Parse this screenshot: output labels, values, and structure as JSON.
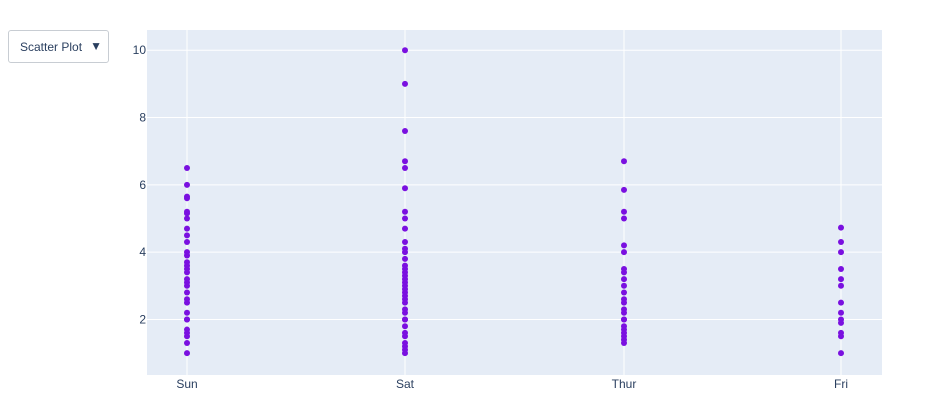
{
  "dropdown": {
    "selected": "Scatter Plot",
    "caret": "▼"
  },
  "colors": {
    "plot_bg": "#e5ecf6",
    "grid": "#ffffff",
    "marker": "#7a10e0"
  },
  "chart_data": {
    "type": "scatter",
    "title": "",
    "xlabel": "",
    "ylabel": "",
    "categories": [
      "Sun",
      "Sat",
      "Thur",
      "Fri"
    ],
    "ylim": [
      0.35,
      10.6
    ],
    "yticks": [
      2,
      4,
      6,
      8,
      10
    ],
    "grid": true,
    "legend": "none",
    "series": [
      {
        "points": [
          {
            "x": "Sun",
            "y": 1.0
          },
          {
            "x": "Sun",
            "y": 1.3
          },
          {
            "x": "Sun",
            "y": 1.5
          },
          {
            "x": "Sun",
            "y": 1.6
          },
          {
            "x": "Sun",
            "y": 1.7
          },
          {
            "x": "Sun",
            "y": 2.0
          },
          {
            "x": "Sun",
            "y": 2.0
          },
          {
            "x": "Sun",
            "y": 2.2
          },
          {
            "x": "Sun",
            "y": 2.5
          },
          {
            "x": "Sun",
            "y": 2.6
          },
          {
            "x": "Sun",
            "y": 2.8
          },
          {
            "x": "Sun",
            "y": 3.0
          },
          {
            "x": "Sun",
            "y": 3.1
          },
          {
            "x": "Sun",
            "y": 3.2
          },
          {
            "x": "Sun",
            "y": 3.4
          },
          {
            "x": "Sun",
            "y": 3.5
          },
          {
            "x": "Sun",
            "y": 3.6
          },
          {
            "x": "Sun",
            "y": 3.7
          },
          {
            "x": "Sun",
            "y": 3.9
          },
          {
            "x": "Sun",
            "y": 4.0
          },
          {
            "x": "Sun",
            "y": 4.3
          },
          {
            "x": "Sun",
            "y": 4.5
          },
          {
            "x": "Sun",
            "y": 4.7
          },
          {
            "x": "Sun",
            "y": 5.0
          },
          {
            "x": "Sun",
            "y": 5.15
          },
          {
            "x": "Sun",
            "y": 5.2
          },
          {
            "x": "Sun",
            "y": 5.6
          },
          {
            "x": "Sun",
            "y": 5.65
          },
          {
            "x": "Sun",
            "y": 6.0
          },
          {
            "x": "Sun",
            "y": 6.5
          },
          {
            "x": "Sat",
            "y": 1.0
          },
          {
            "x": "Sat",
            "y": 1.1
          },
          {
            "x": "Sat",
            "y": 1.2
          },
          {
            "x": "Sat",
            "y": 1.3
          },
          {
            "x": "Sat",
            "y": 1.5
          },
          {
            "x": "Sat",
            "y": 1.6
          },
          {
            "x": "Sat",
            "y": 1.8
          },
          {
            "x": "Sat",
            "y": 2.0
          },
          {
            "x": "Sat",
            "y": 2.0
          },
          {
            "x": "Sat",
            "y": 2.2
          },
          {
            "x": "Sat",
            "y": 2.3
          },
          {
            "x": "Sat",
            "y": 2.5
          },
          {
            "x": "Sat",
            "y": 2.6
          },
          {
            "x": "Sat",
            "y": 2.7
          },
          {
            "x": "Sat",
            "y": 2.8
          },
          {
            "x": "Sat",
            "y": 2.9
          },
          {
            "x": "Sat",
            "y": 3.0
          },
          {
            "x": "Sat",
            "y": 3.1
          },
          {
            "x": "Sat",
            "y": 3.2
          },
          {
            "x": "Sat",
            "y": 3.3
          },
          {
            "x": "Sat",
            "y": 3.4
          },
          {
            "x": "Sat",
            "y": 3.5
          },
          {
            "x": "Sat",
            "y": 3.6
          },
          {
            "x": "Sat",
            "y": 3.8
          },
          {
            "x": "Sat",
            "y": 4.0
          },
          {
            "x": "Sat",
            "y": 4.1
          },
          {
            "x": "Sat",
            "y": 4.3
          },
          {
            "x": "Sat",
            "y": 4.7
          },
          {
            "x": "Sat",
            "y": 5.0
          },
          {
            "x": "Sat",
            "y": 5.2
          },
          {
            "x": "Sat",
            "y": 5.9
          },
          {
            "x": "Sat",
            "y": 6.5
          },
          {
            "x": "Sat",
            "y": 6.7
          },
          {
            "x": "Sat",
            "y": 7.6
          },
          {
            "x": "Sat",
            "y": 9.0
          },
          {
            "x": "Sat",
            "y": 10.0
          },
          {
            "x": "Thur",
            "y": 1.3
          },
          {
            "x": "Thur",
            "y": 1.4
          },
          {
            "x": "Thur",
            "y": 1.5
          },
          {
            "x": "Thur",
            "y": 1.6
          },
          {
            "x": "Thur",
            "y": 1.7
          },
          {
            "x": "Thur",
            "y": 1.8
          },
          {
            "x": "Thur",
            "y": 2.0
          },
          {
            "x": "Thur",
            "y": 2.0
          },
          {
            "x": "Thur",
            "y": 2.2
          },
          {
            "x": "Thur",
            "y": 2.3
          },
          {
            "x": "Thur",
            "y": 2.5
          },
          {
            "x": "Thur",
            "y": 2.6
          },
          {
            "x": "Thur",
            "y": 2.8
          },
          {
            "x": "Thur",
            "y": 3.0
          },
          {
            "x": "Thur",
            "y": 3.2
          },
          {
            "x": "Thur",
            "y": 3.4
          },
          {
            "x": "Thur",
            "y": 3.5
          },
          {
            "x": "Thur",
            "y": 4.0
          },
          {
            "x": "Thur",
            "y": 4.2
          },
          {
            "x": "Thur",
            "y": 5.0
          },
          {
            "x": "Thur",
            "y": 5.2
          },
          {
            "x": "Thur",
            "y": 5.85
          },
          {
            "x": "Thur",
            "y": 6.7
          },
          {
            "x": "Fri",
            "y": 1.0
          },
          {
            "x": "Fri",
            "y": 1.5
          },
          {
            "x": "Fri",
            "y": 1.6
          },
          {
            "x": "Fri",
            "y": 1.9
          },
          {
            "x": "Fri",
            "y": 2.0
          },
          {
            "x": "Fri",
            "y": 2.2
          },
          {
            "x": "Fri",
            "y": 2.5
          },
          {
            "x": "Fri",
            "y": 3.0
          },
          {
            "x": "Fri",
            "y": 3.2
          },
          {
            "x": "Fri",
            "y": 3.5
          },
          {
            "x": "Fri",
            "y": 4.0
          },
          {
            "x": "Fri",
            "y": 4.3
          },
          {
            "x": "Fri",
            "y": 4.73
          }
        ]
      }
    ]
  }
}
